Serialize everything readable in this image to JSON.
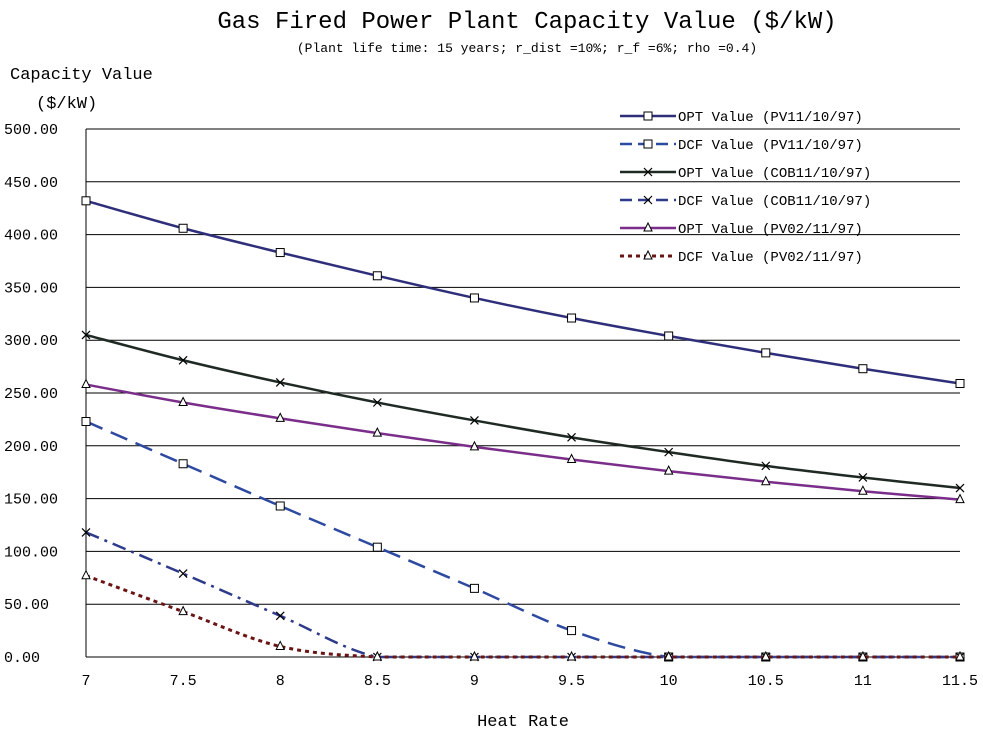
{
  "chart_data": {
    "type": "line",
    "title": "Gas Fired Power Plant Capacity Value ($/kW)",
    "subtitle": "(Plant life time: 15 years; r_dist =10%; r_f =6%; rho =0.4)",
    "ylabel_line1": "Capacity Value",
    "ylabel_line2": "($/kW)",
    "xlabel": "Heat Rate",
    "x": [
      7,
      7.5,
      8,
      8.5,
      9,
      9.5,
      10,
      10.5,
      11,
      11.5
    ],
    "x_tick_labels": [
      "7",
      "7.5",
      "8",
      "8.5",
      "9",
      "9.5",
      "10",
      "10.5",
      "11",
      "11.5"
    ],
    "ylim": [
      0,
      500
    ],
    "y_tick_labels": [
      "0.00",
      "50.00",
      "100.00",
      "150.00",
      "200.00",
      "250.00",
      "300.00",
      "350.00",
      "400.00",
      "450.00",
      "500.00"
    ],
    "grid": "horizontal",
    "legend_placement": "top-right",
    "series": [
      {
        "name": "OPT Value  (PV11/10/97)",
        "color": "#2e2e7a",
        "dash": "solid",
        "marker": "square",
        "values": [
          432,
          406,
          383,
          361,
          340,
          321,
          304,
          288,
          273,
          259
        ]
      },
      {
        "name": "DCF Value  (PV11/10/97)",
        "color": "#2e4aa0",
        "dash": "dash",
        "marker": "square",
        "values": [
          223,
          183,
          143,
          104,
          65,
          25,
          0,
          0,
          0,
          0
        ]
      },
      {
        "name": "OPT Value  (COB11/10/97)",
        "color": "#1e2a22",
        "dash": "solid",
        "marker": "x",
        "values": [
          305,
          281,
          260,
          241,
          224,
          208,
          194,
          181,
          170,
          160
        ]
      },
      {
        "name": "DCF Value  (COB11/10/97)",
        "color": "#2e3a8a",
        "dash": "dashdot",
        "marker": "x",
        "values": [
          118,
          79,
          39,
          0,
          0,
          0,
          0,
          0,
          0,
          0
        ]
      },
      {
        "name": "OPT Value  (PV02/11/97)",
        "color": "#7a2e8a",
        "dash": "solid",
        "marker": "triangle",
        "values": [
          258,
          241,
          226,
          212,
          199,
          187,
          176,
          166,
          157,
          149
        ]
      },
      {
        "name": "DCF Value  (PV02/11/97)",
        "color": "#6b1414",
        "dash": "dot",
        "marker": "triangle",
        "values": [
          77,
          43,
          10,
          0,
          0,
          0,
          0,
          0,
          0,
          0
        ]
      }
    ]
  }
}
